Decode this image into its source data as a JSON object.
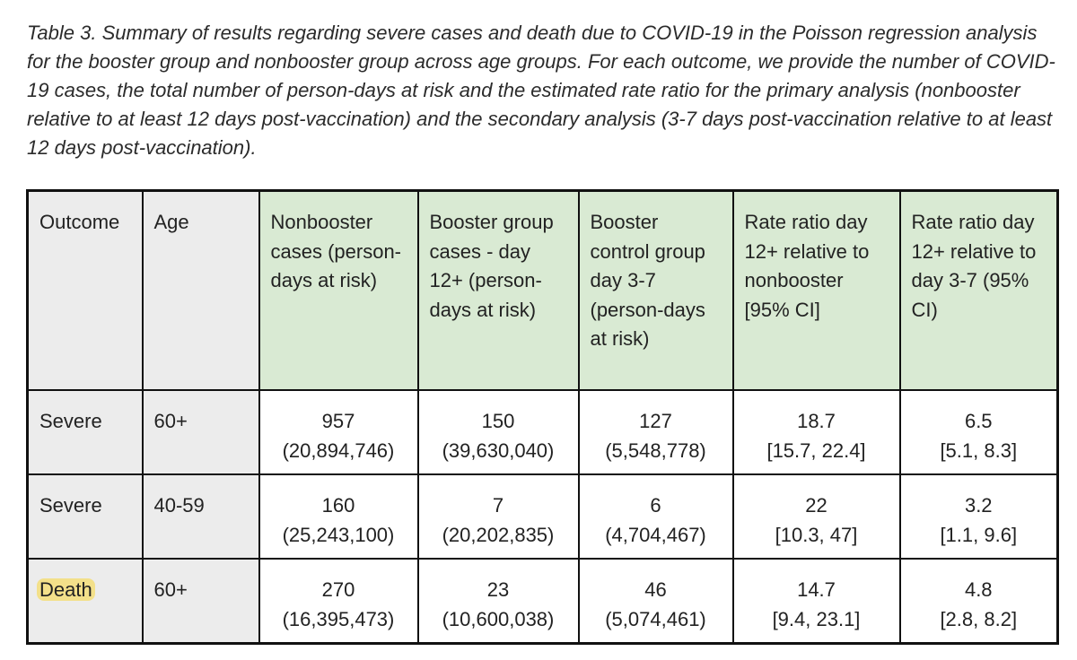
{
  "caption": "Table 3. Summary of results regarding severe cases and death due to COVID-19 in the Poisson regression analysis for the booster group and nonbooster group across age groups. For each outcome, we provide the number of  COVID-19 cases, the total number of person-days at risk and the estimated rate ratio for the primary analysis (nonbooster relative to at least 12 days post-vaccination) and the secondary analysis (3-7 days post-vaccination relative to at least 12 days post-vaccination).",
  "table": {
    "headers": [
      "Outcome",
      "Age",
      "Nonbooster cases (person-days at risk)",
      "Booster group cases - day 12+ (person-days at risk)",
      "Booster control group day 3-7 (person-days at risk)",
      "Rate ratio day 12+ relative to nonbooster [95% CI]",
      "Rate ratio day 12+ relative to day 3-7 (95% CI)"
    ],
    "header_colors": {
      "label_columns": "#ececec",
      "data_columns": "#d9ead3"
    },
    "highlight_color": "#f3e08a",
    "rows": [
      {
        "outcome": "Severe",
        "age": "60+",
        "nonbooster_cases": "957",
        "nonbooster_person_days": "(20,894,746)",
        "booster_cases": "150",
        "booster_person_days": "(39,630,040)",
        "control_cases": "127",
        "control_person_days": "(5,548,778)",
        "rr_nonbooster": "18.7",
        "rr_nonbooster_ci": "[15.7, 22.4]",
        "rr_day37": "6.5",
        "rr_day37_ci": "[5.1, 8.3]"
      },
      {
        "outcome": "Severe",
        "age": "40-59",
        "nonbooster_cases": "160",
        "nonbooster_person_days": "(25,243,100)",
        "booster_cases": "7",
        "booster_person_days": "(20,202,835)",
        "control_cases": "6",
        "control_person_days": "(4,704,467)",
        "rr_nonbooster": "22",
        "rr_nonbooster_ci": "[10.3, 47]",
        "rr_day37": "3.2",
        "rr_day37_ci": "[1.1, 9.6]"
      },
      {
        "outcome": "Death",
        "outcome_highlighted": true,
        "age": "60+",
        "nonbooster_cases": "270",
        "nonbooster_person_days": "(16,395,473)",
        "booster_cases": "23",
        "booster_person_days": "(10,600,038)",
        "control_cases": "46",
        "control_person_days": "(5,074,461)",
        "rr_nonbooster": "14.7",
        "rr_nonbooster_ci": "[9.4, 23.1]",
        "rr_day37": "4.8",
        "rr_day37_ci": "[2.8, 8.2]"
      }
    ]
  }
}
